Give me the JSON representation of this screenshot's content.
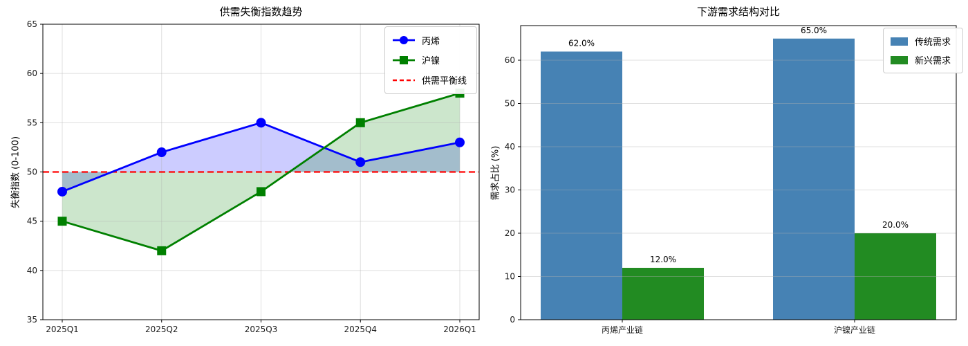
{
  "chart_data": [
    {
      "type": "line",
      "title": "供需失衡指数趋势",
      "ylabel": "失衡指数 (0-100)",
      "x_categories": [
        "2025Q1",
        "2025Q2",
        "2025Q3",
        "2025Q4",
        "2026Q1"
      ],
      "ylim": [
        35,
        65
      ],
      "yticks": [
        35,
        40,
        45,
        50,
        55,
        60,
        65
      ],
      "grid": "both",
      "legend_position": "top-right",
      "series": [
        {
          "name": "丙烯",
          "values": [
            48,
            52,
            55,
            51,
            53
          ],
          "color": "#0000ff",
          "marker": "circle",
          "fill_to_baseline": 50,
          "fill_opacity": 0.2
        },
        {
          "name": "沪镍",
          "values": [
            45,
            42,
            48,
            55,
            58
          ],
          "color": "#008000",
          "marker": "square",
          "fill_to_baseline": 50,
          "fill_opacity": 0.2
        }
      ],
      "reference_line": {
        "name": "供需平衡线",
        "value": 50,
        "color": "#ff0000",
        "style": "dashed"
      }
    },
    {
      "type": "bar",
      "title": "下游需求结构对比",
      "ylabel": "需求占比 (%)",
      "categories": [
        "丙烯产业链",
        "沪镍产业链"
      ],
      "ylim": [
        0,
        68
      ],
      "yticks": [
        0,
        10,
        20,
        30,
        40,
        50,
        60
      ],
      "grid": "y",
      "legend_position": "top-right",
      "series": [
        {
          "name": "传统需求",
          "values": [
            62.0,
            65.0
          ],
          "labels": [
            "62.0%",
            "65.0%"
          ],
          "color": "#4682b4"
        },
        {
          "name": "新兴需求",
          "values": [
            12.0,
            20.0
          ],
          "labels": [
            "12.0%",
            "20.0%"
          ],
          "color": "#228b22"
        }
      ]
    }
  ],
  "colors": {
    "grid": "#b0b0b0",
    "axis": "#000000",
    "tick_label": "#1a1a1a"
  }
}
